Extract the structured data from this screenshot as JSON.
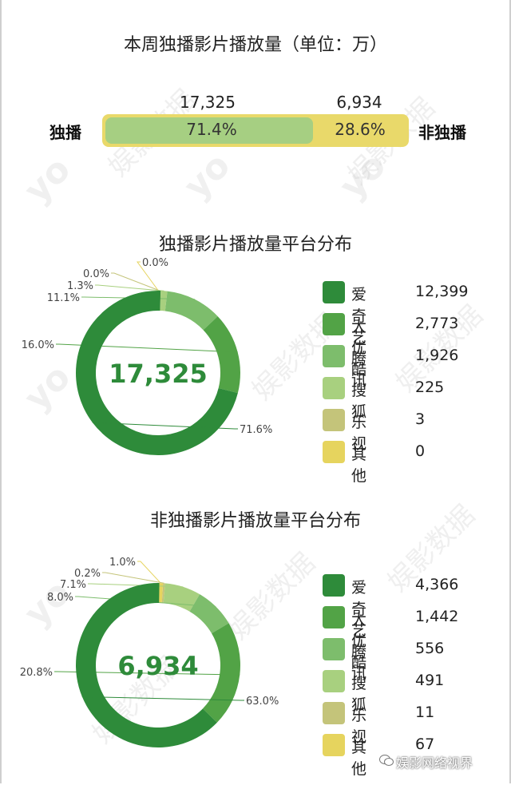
{
  "watermark": {
    "text": "娱影数据",
    "logo": "yo"
  },
  "brand": {
    "text": "娱影网络视界",
    "icon": "wechat-icon"
  },
  "summary": {
    "title": "本周独播影片播放量（单位：万）",
    "left_label": "独播",
    "right_label": "非独播",
    "exclusive_value": "17,325",
    "nonexclusive_value": "6,934",
    "exclusive_pct": "71.4%",
    "nonexclusive_pct": "28.6%",
    "exclusive_fraction": 0.714
  },
  "chart_data": [
    {
      "type": "pie",
      "title": "独播影片播放量平台分布",
      "center_label": "17,325",
      "categories": [
        "爱奇艺",
        "大优酷",
        "腾讯",
        "搜狐",
        "乐视",
        "其他"
      ],
      "values": [
        12399,
        2773,
        1926,
        225,
        3,
        0
      ],
      "value_labels": [
        "12,399",
        "2,773",
        "1,926",
        "225",
        "3",
        "0"
      ],
      "percent_labels": [
        "71.6%",
        "16.0%",
        "11.1%",
        "1.3%",
        "0.0%",
        "0.0%"
      ],
      "colors": [
        "#2e8b3a",
        "#52a346",
        "#7dbd6c",
        "#a8d07f",
        "#c4c47a",
        "#e6d45e"
      ],
      "legend": "right"
    },
    {
      "type": "pie",
      "title": "非独播影片播放量平台分布",
      "center_label": "6,934",
      "categories": [
        "爱奇艺",
        "大优酷",
        "腾讯",
        "搜狐",
        "乐视",
        "其他"
      ],
      "values": [
        4366,
        1442,
        556,
        491,
        11,
        67
      ],
      "value_labels": [
        "4,366",
        "1,442",
        "556",
        "491",
        "11",
        "67"
      ],
      "percent_labels": [
        "63.0%",
        "20.8%",
        "8.0%",
        "7.1%",
        "0.2%",
        "1.0%"
      ],
      "colors": [
        "#2e8b3a",
        "#52a346",
        "#7dbd6c",
        "#a8d07f",
        "#c4c47a",
        "#e6d45e"
      ],
      "legend": "right"
    }
  ]
}
